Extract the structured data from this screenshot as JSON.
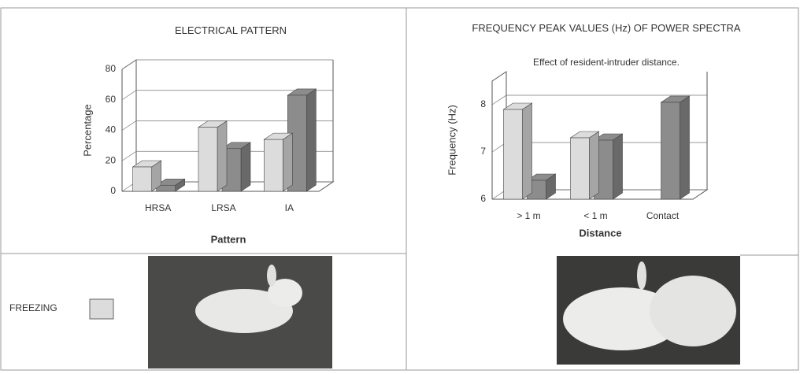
{
  "chart_data": [
    {
      "type": "bar3d",
      "title": "ELECTRICAL PATTERN",
      "y_label": "Percentage",
      "x_label": "Pattern",
      "categories": [
        "HRSA",
        "LRSA",
        "IA"
      ],
      "series": [
        {
          "name": "FREEZING",
          "color": "#dcdcdc",
          "values": [
            16,
            42,
            34
          ]
        },
        {
          "color": "#8c8c8c",
          "values": [
            4,
            28,
            63
          ]
        }
      ],
      "ylim": [
        0,
        80
      ],
      "yticks": [
        0,
        20,
        40,
        60,
        80
      ],
      "grid": true
    },
    {
      "type": "bar3d",
      "title": "FREQUENCY PEAK VALUES (Hz) OF POWER SPECTRA",
      "subtitle": "Effect of resident-intruder distance.",
      "y_label": "Frequency (Hz)",
      "x_label": "Distance",
      "categories": [
        "> 1 m",
        "< 1 m",
        "Contact"
      ],
      "series": [
        {
          "color": "#dcdcdc",
          "values": [
            7.9,
            7.3,
            null
          ]
        },
        {
          "color": "#8c8c8c",
          "values": [
            6.4,
            7.25,
            8.05
          ]
        }
      ],
      "ylim": [
        6,
        8.5
      ],
      "yticks": [
        6,
        7,
        8
      ],
      "grid": true
    }
  ]
}
